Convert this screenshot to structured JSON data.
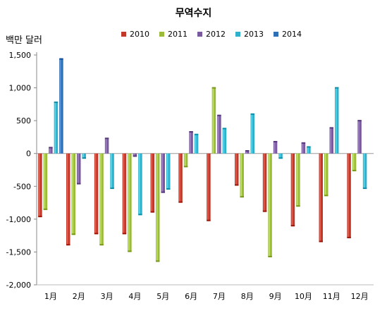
{
  "chart_data": {
    "type": "bar",
    "title": "무역수지",
    "ylabel": "백만 달러",
    "xlabel": "",
    "categories": [
      "1月",
      "2月",
      "3月",
      "4月",
      "5月",
      "6月",
      "7月",
      "8月",
      "9月",
      "10月",
      "11月",
      "12月"
    ],
    "ylim": [
      -2000,
      1500
    ],
    "yticks": [
      1500,
      1000,
      500,
      0,
      -500,
      -1000,
      -1500,
      -2000
    ],
    "ytick_labels": [
      "1,500",
      "1,000",
      "500",
      "0",
      "-500",
      "-1,000",
      "-1,500",
      "-2,000"
    ],
    "grid": false,
    "legend_position": "top",
    "series": [
      {
        "name": "2010",
        "color": "#c0392b",
        "values": [
          -960,
          -1390,
          -1220,
          -1220,
          -890,
          -740,
          -1020,
          -480,
          -880,
          -1100,
          -1340,
          -1280
        ]
      },
      {
        "name": "2011",
        "color": "#9bbb3b",
        "values": [
          -850,
          -1230,
          -1390,
          -1490,
          -1640,
          -200,
          1000,
          -660,
          -1570,
          -800,
          -640,
          -260
        ]
      },
      {
        "name": "2012",
        "color": "#7a5a9e",
        "values": [
          90,
          -460,
          230,
          -40,
          -590,
          330,
          580,
          40,
          180,
          160,
          390,
          500
        ]
      },
      {
        "name": "2013",
        "color": "#2fb1cc",
        "values": [
          780,
          -70,
          -530,
          -930,
          -540,
          290,
          380,
          600,
          -70,
          100,
          1000,
          -530
        ]
      },
      {
        "name": "2014",
        "color": "#2f6fb5",
        "values": [
          1440,
          null,
          null,
          null,
          null,
          null,
          null,
          null,
          null,
          null,
          null,
          null
        ]
      }
    ]
  }
}
